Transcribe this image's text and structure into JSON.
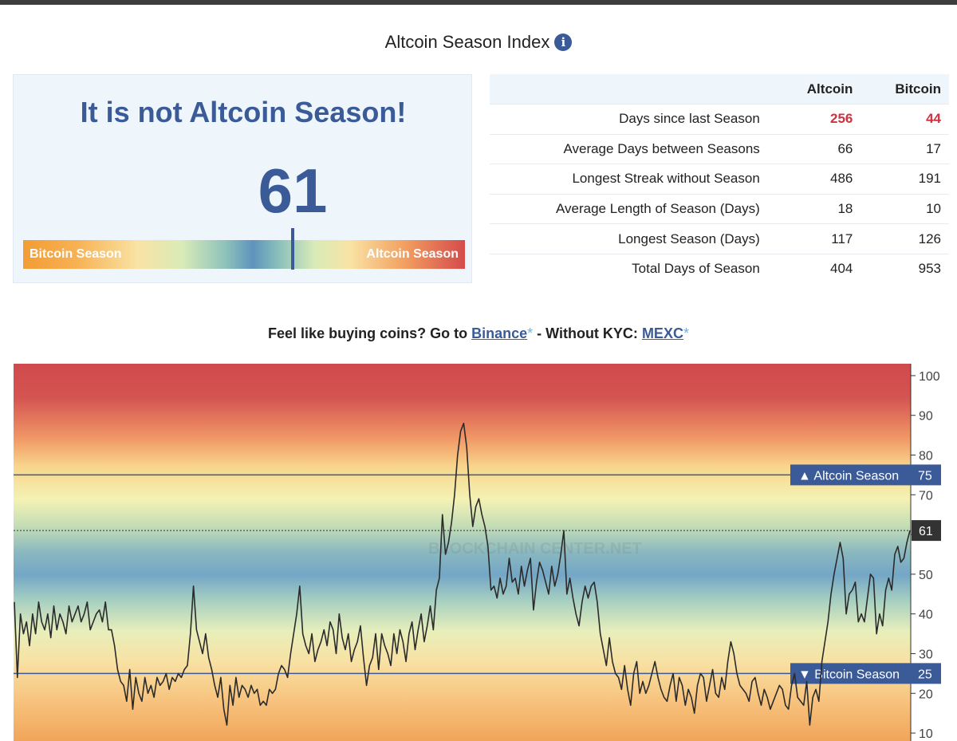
{
  "header": {
    "title": "Altcoin Season Index",
    "info_icon": "info-icon"
  },
  "status": {
    "message": "It is not Altcoin Season!",
    "index_value": "61",
    "gauge": {
      "left_label": "Bitcoin Season",
      "right_label": "Altcoin Season",
      "level_percent": 61
    }
  },
  "stats": {
    "columns": [
      "Altcoin",
      "Bitcoin"
    ],
    "rows": [
      {
        "label": "Days since last Season",
        "altcoin": "256",
        "bitcoin": "44"
      },
      {
        "label": "Average Days between Seasons",
        "altcoin": "66",
        "bitcoin": "17"
      },
      {
        "label": "Longest Streak without Season",
        "altcoin": "486",
        "bitcoin": "191"
      },
      {
        "label": "Average Length of Season (Days)",
        "altcoin": "18",
        "bitcoin": "10"
      },
      {
        "label": "Longest Season (Days)",
        "altcoin": "117",
        "bitcoin": "126"
      },
      {
        "label": "Total Days of Season",
        "altcoin": "404",
        "bitcoin": "953"
      }
    ],
    "highlight_color": "#d2313f"
  },
  "promo": {
    "prefix": "Feel like buying coins? Go to ",
    "link1": "Binance",
    "star": "*",
    "middle": " - Without KYC: ",
    "link2": "MEXC"
  },
  "chart_data": {
    "type": "line",
    "ylim": [
      8,
      103
    ],
    "y_ticks": [
      10,
      20,
      30,
      40,
      50,
      60,
      70,
      80,
      90,
      100
    ],
    "threshold_lines": [
      {
        "label": "▲ Altcoin Season",
        "value": 75
      },
      {
        "label": "▼ Bitcoin Season",
        "value": 25
      }
    ],
    "current": {
      "label": "61",
      "value": 61
    },
    "watermark": "BLOCKCHAIN CENTER.NET",
    "colors": {
      "line": "#2b2b2b",
      "threshold": "#3b5a98",
      "current_badge": "#333333"
    },
    "series": [
      {
        "values": [
          43,
          24,
          40,
          35,
          38,
          32,
          40,
          35,
          43,
          38,
          36,
          40,
          34,
          42,
          36,
          40,
          38,
          35,
          42,
          38,
          40,
          42,
          38,
          40,
          43,
          36,
          38,
          40,
          41,
          38,
          43,
          36,
          36,
          32,
          26,
          23,
          22,
          18,
          26,
          16,
          24,
          20,
          18,
          24,
          20,
          22,
          19,
          24,
          22,
          23,
          25,
          21,
          24,
          23,
          25,
          24,
          26,
          27,
          35,
          47,
          36,
          33,
          30,
          35,
          29,
          26,
          22,
          19,
          24,
          16,
          12,
          22,
          17,
          24,
          19,
          22,
          21,
          19,
          22,
          20,
          21,
          17,
          18,
          17,
          21,
          20,
          21,
          25,
          27,
          26,
          24,
          30,
          35,
          40,
          47,
          35,
          32,
          30,
          35,
          28,
          31,
          33,
          36,
          32,
          38,
          36,
          30,
          40,
          34,
          31,
          35,
          28,
          31,
          33,
          37,
          29,
          22,
          27,
          29,
          35,
          26,
          35,
          32,
          30,
          27,
          35,
          30,
          36,
          33,
          28,
          35,
          38,
          31,
          36,
          40,
          33,
          37,
          42,
          36,
          46,
          49,
          65,
          55,
          58,
          63,
          70,
          80,
          86,
          88,
          82,
          70,
          62,
          67,
          69,
          65,
          62,
          57,
          46,
          47,
          44,
          49,
          45,
          47,
          54,
          48,
          49,
          45,
          52,
          47,
          51,
          54,
          41,
          48,
          53,
          51,
          48,
          45,
          52,
          47,
          50,
          55,
          61,
          45,
          49,
          44,
          40,
          37,
          43,
          47,
          44,
          47,
          48,
          43,
          35,
          31,
          27,
          34,
          28,
          25,
          24,
          21,
          27,
          21,
          17,
          25,
          28,
          20,
          23,
          20,
          22,
          25,
          28,
          24,
          21,
          19,
          18,
          22,
          25,
          18,
          24,
          22,
          17,
          21,
          19,
          15,
          22,
          25,
          24,
          18,
          22,
          26,
          20,
          19,
          24,
          21,
          28,
          33,
          30,
          25,
          22,
          21,
          20,
          18,
          23,
          24,
          20,
          17,
          21,
          19,
          16,
          18,
          20,
          22,
          21,
          17,
          16,
          22,
          25,
          19,
          18,
          17,
          23,
          12,
          19,
          21,
          18,
          28,
          33,
          38,
          45,
          50,
          54,
          58,
          54,
          40,
          45,
          46,
          48,
          38,
          40,
          38,
          44,
          50,
          49,
          35,
          40,
          37,
          46,
          49,
          46,
          55,
          57,
          53,
          54,
          58,
          61
        ]
      }
    ]
  }
}
